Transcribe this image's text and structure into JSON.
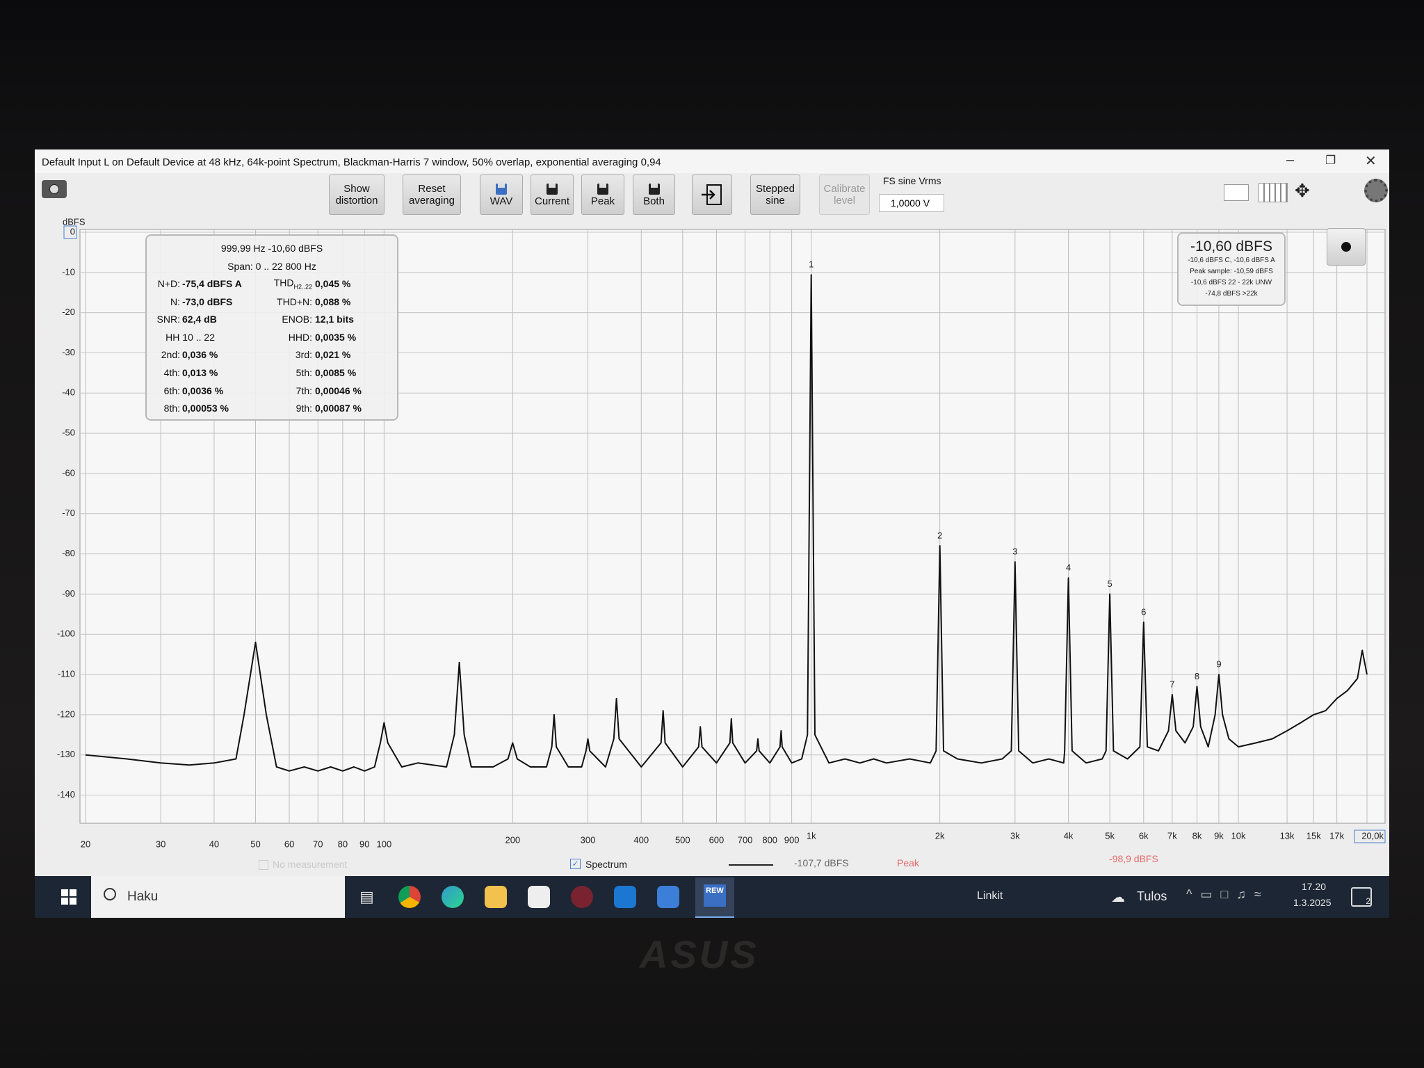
{
  "window": {
    "title": "Default Input L on Default Device at 48 kHz, 64k-point Spectrum, Blackman-Harris 7 window, 50% overlap, exponential averaging 0,94",
    "fs_label": "FS sine Vrms",
    "fs_value": "1,0000 V"
  },
  "toolbar": [
    {
      "lines": [
        "Show",
        "distortion"
      ]
    },
    {
      "lines": [
        "Reset",
        "averaging"
      ]
    },
    {
      "lines": [
        "WAV"
      ]
    },
    {
      "lines": [
        "Current"
      ]
    },
    {
      "lines": [
        "Peak"
      ]
    },
    {
      "lines": [
        "Both"
      ]
    },
    {
      "lines": [
        "Stepped",
        "sine"
      ]
    },
    {
      "lines": [
        "Calibrate",
        "level"
      ],
      "disabled": true
    }
  ],
  "stats": {
    "header": [
      "999,99 Hz  -10,60 dBFS",
      "Span: 0 .. 22 800 Hz"
    ],
    "rows": [
      [
        {
          "label": "N+D:",
          "value": "-75,4 dBFS A"
        },
        {
          "label": "THD",
          "sub": "H2..22",
          "value": "0,045 %"
        }
      ],
      [
        {
          "label": "N:",
          "value": "-73,0 dBFS"
        },
        {
          "label": "THD+N:",
          "value": "0,088 %"
        }
      ],
      [
        {
          "label": "SNR:",
          "value": "62,4 dB"
        },
        {
          "label": "ENOB:",
          "value": "12,1 bits"
        }
      ],
      [
        {
          "label": "HH 10 .. 22"
        },
        {
          "label": "HHD:",
          "value": "0,0035 %"
        }
      ],
      [
        {
          "label": "2nd:",
          "value": "0,036 %"
        },
        {
          "label": "3rd:",
          "value": "0,021 %"
        }
      ],
      [
        {
          "label": "4th:",
          "value": "0,013 %"
        },
        {
          "label": "5th:",
          "value": "0,0085 %"
        }
      ],
      [
        {
          "label": "6th:",
          "value": "0,0036 %"
        },
        {
          "label": "7th:",
          "value": "0,00046 %"
        }
      ],
      [
        {
          "label": "8th:",
          "value": "0,00053 %"
        },
        {
          "label": "9th:",
          "value": "0,00087 %"
        }
      ]
    ]
  },
  "level_box": {
    "main": "-10,60 dBFS",
    "lines": [
      "-10,6 dBFS C, -10,6 dBFS A",
      "Peak sample: -10,59 dBFS",
      "-10,6 dBFS 22 - 22k UNW",
      "-74,8 dBFS >22k"
    ]
  },
  "chart_data": {
    "type": "line",
    "y_label": "dBFS",
    "log_x": true,
    "grid": true,
    "xlim": [
      20,
      20000
    ],
    "ylim": [
      -147,
      0
    ],
    "xticks": [
      20,
      30,
      40,
      50,
      60,
      70,
      80,
      90,
      100,
      200,
      300,
      400,
      500,
      600,
      700,
      800,
      900,
      {
        "value": 1000,
        "label": "1k"
      },
      {
        "value": 2000,
        "label": "2k"
      },
      {
        "value": 3000,
        "label": "3k"
      },
      {
        "value": 4000,
        "label": "4k"
      },
      {
        "value": 5000,
        "label": "5k"
      },
      {
        "value": 6000,
        "label": "6k"
      },
      {
        "value": 7000,
        "label": "7k"
      },
      {
        "value": 8000,
        "label": "8k"
      },
      {
        "value": 9000,
        "label": "9k"
      },
      {
        "value": 10000,
        "label": "10k"
      },
      {
        "value": 13000,
        "label": "13k"
      },
      {
        "value": 15000,
        "label": "15k"
      },
      {
        "value": 17000,
        "label": "17k"
      },
      {
        "value": 20000,
        "label": "20,0k"
      }
    ],
    "yticks": [
      0,
      -10,
      -20,
      -30,
      -40,
      -50,
      -60,
      -70,
      -80,
      -90,
      -100,
      -110,
      -120,
      -130,
      -140
    ],
    "x": [
      20,
      25,
      30,
      35,
      40,
      45,
      47,
      50,
      53,
      56,
      60,
      65,
      70,
      75,
      80,
      85,
      90,
      95,
      98,
      100,
      102,
      110,
      120,
      140,
      146,
      150,
      154,
      160,
      180,
      195,
      200,
      205,
      220,
      240,
      247,
      250,
      253,
      270,
      290,
      297,
      300,
      303,
      330,
      345,
      350,
      355,
      400,
      445,
      450,
      455,
      500,
      545,
      550,
      555,
      600,
      645,
      650,
      655,
      700,
      745,
      750,
      755,
      800,
      845,
      850,
      855,
      900,
      950,
      980,
      1000,
      1020,
      1100,
      1200,
      1300,
      1400,
      1500,
      1700,
      1900,
      1960,
      2000,
      2040,
      2200,
      2500,
      2800,
      2940,
      3000,
      3060,
      3300,
      3600,
      3900,
      3920,
      4000,
      4080,
      4400,
      4800,
      4900,
      5000,
      5100,
      5500,
      5880,
      6000,
      6120,
      6500,
      6860,
      7000,
      7140,
      7500,
      7840,
      8000,
      8160,
      8500,
      8820,
      9000,
      9180,
      9500,
      10000,
      11000,
      12000,
      13000,
      14000,
      15000,
      16000,
      17000,
      18000,
      19000,
      19500,
      20000
    ],
    "series": [
      {
        "name": "Spectrum",
        "color": "#111111",
        "values": [
          -130,
          -131,
          -132,
          -132.5,
          -132,
          -131,
          -120,
          -102,
          -120,
          -133,
          -134,
          -133,
          -134,
          -133,
          -134,
          -133,
          -134,
          -133,
          -127,
          -122,
          -127,
          -133,
          -132,
          -133,
          -125,
          -107,
          -125,
          -133,
          -133,
          -131,
          -127,
          -131,
          -133,
          -133,
          -128,
          -120,
          -128,
          -133,
          -133,
          -129,
          -126,
          -129,
          -133,
          -126,
          -116,
          -126,
          -133,
          -127,
          -119,
          -127,
          -133,
          -128,
          -123,
          -128,
          -132,
          -127,
          -121,
          -127,
          -132,
          -129,
          -126,
          -129,
          -132,
          -128,
          -124,
          -128,
          -132,
          -131,
          -125,
          -10.6,
          -125,
          -132,
          -131,
          -132,
          -131,
          -132,
          -131,
          -132,
          -129,
          -78,
          -129,
          -131,
          -132,
          -131,
          -129,
          -82,
          -129,
          -132,
          -131,
          -132,
          -129,
          -86,
          -129,
          -132,
          -131,
          -129,
          -90,
          -129,
          -131,
          -128,
          -97,
          -128,
          -129,
          -124,
          -115,
          -124,
          -127,
          -123,
          -113,
          -123,
          -128,
          -120,
          -110,
          -120,
          -126,
          -128,
          -127,
          -126,
          -124,
          -122,
          -120,
          -119,
          -116,
          -114,
          -111,
          -104,
          -110
        ]
      }
    ],
    "harmonics": [
      {
        "label": "1",
        "freq": 1000,
        "level": -10.6
      },
      {
        "label": "2",
        "freq": 2000,
        "level": -78
      },
      {
        "label": "3",
        "freq": 3000,
        "level": -82
      },
      {
        "label": "4",
        "freq": 4000,
        "level": -86
      },
      {
        "label": "5",
        "freq": 5000,
        "level": -90
      },
      {
        "label": "6",
        "freq": 6000,
        "level": -97
      },
      {
        "label": "7",
        "freq": 7000,
        "level": -115
      },
      {
        "label": "8",
        "freq": 8000,
        "level": -113
      },
      {
        "label": "9",
        "freq": 9000,
        "level": -110
      }
    ]
  },
  "legend_bar": {
    "no_measurement": "No measurement",
    "spectrum_value": "-107,7 dBFS",
    "peak": "Peak",
    "peak_value": "-98,9 dBFS"
  },
  "taskbar": {
    "search": "Haku",
    "rew_icon": "REW",
    "links": "Linkit",
    "weather": "Tulos",
    "time": "17.20",
    "date": "1.3.2025",
    "notifications": "2"
  },
  "bezel_logo": "ASUS"
}
